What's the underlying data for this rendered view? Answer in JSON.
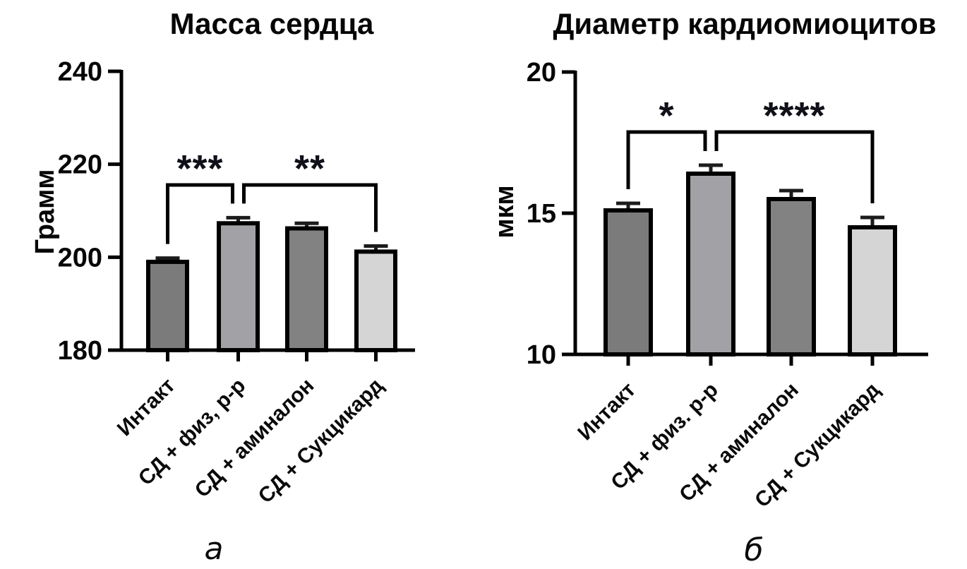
{
  "figure": {
    "background": "#ffffff",
    "text_color": "#060606",
    "axis_color": "#000000",
    "error_bar_color": "#1c1c1c"
  },
  "chart_data": [
    {
      "id": "heart-mass",
      "type": "bar",
      "title": "Масса сердца",
      "ylabel": "Грамм",
      "xlabel": "",
      "ylim": [
        180,
        240
      ],
      "yticks": [
        240,
        220,
        200,
        180
      ],
      "grid": false,
      "legend": "none",
      "categories": [
        "Интакт",
        "СД + физ, р-р",
        "СД + аминалон",
        "СД + Сукцикард"
      ],
      "values": [
        199.0,
        207.3,
        206.2,
        201.2
      ],
      "errors": [
        0.8,
        1.2,
        1.1,
        1.2
      ],
      "bar_colors": [
        "#7b7b7b",
        "#a2a2a6",
        "#828282",
        "#d5d5d5"
      ],
      "significance": [
        {
          "label": "***",
          "from": 0,
          "to": 1
        },
        {
          "label": "**",
          "from": 1,
          "to": 3
        }
      ],
      "caption": "а"
    },
    {
      "id": "cardiomyocyte-diameter",
      "type": "bar",
      "title": "Диаметр кардиомиоцитов",
      "ylabel": "мкм",
      "xlabel": "",
      "ylim": [
        10,
        20
      ],
      "yticks": [
        20,
        15,
        10
      ],
      "grid": false,
      "legend": "none",
      "categories": [
        "Интакт",
        "СД + физ. р-р",
        "СД + аминалон",
        "СД + Сукцикард"
      ],
      "values": [
        15.1,
        16.4,
        15.5,
        14.5
      ],
      "errors": [
        0.25,
        0.3,
        0.3,
        0.35
      ],
      "bar_colors": [
        "#7b7b7b",
        "#a2a2a6",
        "#828282",
        "#d5d5d5"
      ],
      "significance": [
        {
          "label": "*",
          "from": 0,
          "to": 1
        },
        {
          "label": "****",
          "from": 1,
          "to": 3
        }
      ],
      "caption": "б"
    }
  ]
}
